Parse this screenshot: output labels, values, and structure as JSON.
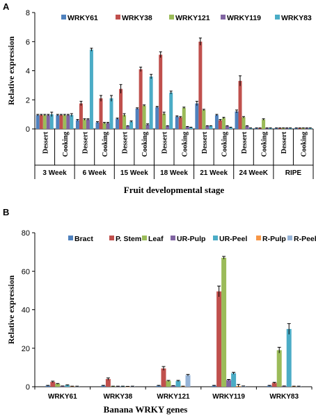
{
  "chart_data": [
    {
      "panel_label": "A",
      "type": "bar",
      "ylabel": "Relative expression",
      "xlabel": "Fruit developmental stage",
      "ylim": [
        0,
        8
      ],
      "yticks": [
        0,
        2,
        4,
        6,
        8
      ],
      "grid": false,
      "legend_placement": "top",
      "groups": [
        "3 Week",
        "6 Week",
        "15 Week",
        "18 Week",
        "21 Week",
        "24 WeeK",
        "RIPE"
      ],
      "sub_labels": [
        "Dessert",
        "Cooking"
      ],
      "series": [
        {
          "name": "WRKY61",
          "color": "#4f81bd",
          "values": [
            0.95,
            0.95,
            0.6,
            0.45,
            0.7,
            1.4,
            1.5,
            0.85,
            1.75,
            0.95,
            1.2,
            0.05,
            0.05,
            0.05
          ],
          "errors": [
            0.05,
            0.05,
            0.05,
            0.05,
            0.05,
            0.05,
            0.05,
            0.05,
            0.15,
            0.05,
            0.1,
            0.02,
            0.02,
            0.02
          ]
        },
        {
          "name": "WRKY38",
          "color": "#c0504d",
          "values": [
            0.95,
            0.95,
            1.75,
            2.1,
            2.75,
            4.1,
            5.1,
            0.8,
            6.0,
            0.6,
            3.3,
            0.05,
            0.05,
            0.05
          ],
          "errors": [
            0.05,
            0.05,
            0.15,
            0.2,
            0.3,
            0.15,
            0.2,
            0.05,
            0.25,
            0.05,
            0.35,
            0.02,
            0.02,
            0.02
          ]
        },
        {
          "name": "WRKY121",
          "color": "#9bbb59",
          "values": [
            0.95,
            0.95,
            0.65,
            0.4,
            0.95,
            1.6,
            1.05,
            1.45,
            1.3,
            0.75,
            0.8,
            0.65,
            0.05,
            0.05
          ],
          "errors": [
            0.05,
            0.05,
            0.05,
            0.05,
            0.1,
            0.05,
            0.1,
            0.05,
            0.05,
            0.05,
            0.05,
            0.05,
            0.02,
            0.02
          ]
        },
        {
          "name": "WRKY119",
          "color": "#8064a2",
          "values": [
            0.95,
            0.95,
            0.65,
            0.4,
            0.2,
            0.3,
            0.2,
            0.15,
            0.2,
            0.2,
            0.2,
            0.05,
            0.05,
            0.05
          ],
          "errors": [
            0.05,
            0.05,
            0.05,
            0.05,
            0.02,
            0.05,
            0.02,
            0.02,
            0.02,
            0.02,
            0.02,
            0.02,
            0.02,
            0.02
          ]
        },
        {
          "name": "WRKY83",
          "color": "#4bacc6",
          "values": [
            1.0,
            0.95,
            5.45,
            2.1,
            0.5,
            3.6,
            2.5,
            0.1,
            0.2,
            0.1,
            0.05,
            0.05,
            0.05,
            0.05
          ],
          "errors": [
            0.15,
            0.1,
            0.1,
            0.2,
            0.05,
            0.15,
            0.1,
            0.02,
            0.02,
            0.02,
            0.02,
            0.02,
            0.02,
            0.02
          ]
        }
      ]
    },
    {
      "panel_label": "B",
      "type": "bar",
      "ylabel": "Relative expression",
      "xlabel": "Banana WRKY  genes",
      "ylim": [
        0,
        80
      ],
      "yticks": [
        0,
        20,
        40,
        60,
        80
      ],
      "grid": false,
      "legend_placement": "top",
      "categories": [
        "WRKY61",
        "WRKY38",
        "WRKY121",
        "WRKY119",
        "WRKY83"
      ],
      "series": [
        {
          "name": "Bract",
          "color": "#4f81bd",
          "values": [
            0.5,
            0.5,
            0.5,
            0.5,
            0.5
          ],
          "errors": [
            0.2,
            0.2,
            0.2,
            0.2,
            0.2
          ]
        },
        {
          "name": "P. Stem",
          "color": "#c0504d",
          "values": [
            2.5,
            4.0,
            9.5,
            49.5,
            2.0
          ],
          "errors": [
            0.4,
            0.6,
            1.0,
            2.8,
            0.3
          ]
        },
        {
          "name": "Leaf",
          "color": "#9bbb59",
          "values": [
            1.5,
            0.2,
            3.0,
            67.0,
            19.0
          ],
          "errors": [
            0.2,
            0.1,
            0.3,
            0.7,
            1.5
          ]
        },
        {
          "name": "UR-Pulp",
          "color": "#8064a2",
          "values": [
            0.3,
            0.2,
            0.5,
            3.5,
            0.3
          ],
          "errors": [
            0.1,
            0.1,
            0.1,
            0.3,
            0.1
          ]
        },
        {
          "name": "UR-Peel",
          "color": "#4bacc6",
          "values": [
            0.8,
            0.2,
            3.0,
            7.0,
            30.0
          ],
          "errors": [
            0.2,
            0.1,
            0.3,
            0.5,
            2.8
          ]
        },
        {
          "name": "R-Pulp",
          "color": "#f79646",
          "values": [
            0.2,
            0.1,
            0.2,
            0.4,
            0.2
          ],
          "errors": [
            0.1,
            0.1,
            0.1,
            0.8,
            0.1
          ]
        },
        {
          "name": "R-Peel",
          "color": "#95b3d7",
          "values": [
            0.2,
            0.2,
            6.0,
            0.3,
            0.2
          ],
          "errors": [
            0.1,
            0.1,
            0.4,
            0.1,
            0.1
          ]
        }
      ]
    }
  ]
}
